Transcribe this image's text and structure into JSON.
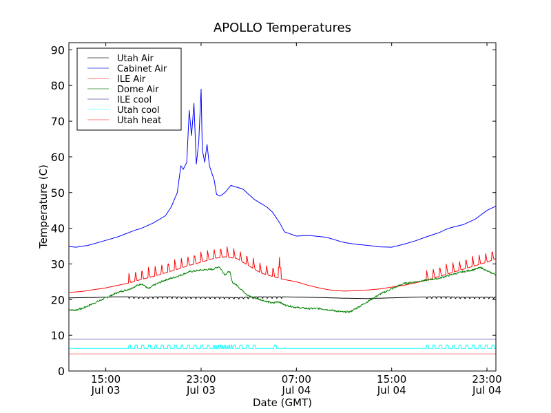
{
  "chart_data": {
    "type": "line",
    "title": "APOLLO Temperatures",
    "xlabel": "Date (GMT)",
    "ylabel": "Temperature (C)",
    "x_units": "hours since 00:00 Jul 03 (GMT)",
    "xlim": [
      11.9,
      47.75
    ],
    "ylim": [
      0,
      92
    ],
    "grid": false,
    "legend_position": "top-left",
    "y_ticks": [
      0,
      10,
      20,
      30,
      40,
      50,
      60,
      70,
      80,
      90
    ],
    "x_ticks": [
      {
        "x": 15,
        "line1": "15:00",
        "line2": "Jul 03"
      },
      {
        "x": 23,
        "line1": "23:00",
        "line2": "Jul 03"
      },
      {
        "x": 31,
        "line1": "07:00",
        "line2": "Jul 04"
      },
      {
        "x": 39,
        "line1": "15:00",
        "line2": "Jul 04"
      },
      {
        "x": 47,
        "line1": "23:00",
        "line2": "Jul 04"
      }
    ],
    "series": [
      {
        "name": "Utah Air",
        "color": "#000000",
        "x": [
          11.9,
          14,
          16,
          17,
          18,
          20,
          22,
          24,
          26,
          28,
          29.5,
          31,
          33,
          35,
          37,
          39,
          41,
          43,
          45,
          47.75
        ],
        "y": [
          20.5,
          20.6,
          20.8,
          20.8,
          20.7,
          20.8,
          20.7,
          20.7,
          20.6,
          20.8,
          20.8,
          20.7,
          20.6,
          20.4,
          20.3,
          20.5,
          20.7,
          20.8,
          20.7,
          20.7
        ],
        "oscillation": {
          "from": 16.9,
          "to": 29.8,
          "amplitude": 0.4,
          "period": 0.4
        }
      },
      {
        "name": "Cabinet Air",
        "color": "#0000ff",
        "x": [
          11.9,
          12.5,
          13.5,
          15,
          16,
          17.5,
          18,
          19,
          20,
          20.5,
          21,
          21.3,
          21.5,
          21.8,
          22,
          22.2,
          22.4,
          22.6,
          22.8,
          23.0,
          23.1,
          23.3,
          23.5,
          23.7,
          23.9,
          24.1,
          24.3,
          24.6,
          25.0,
          25.5,
          26.5,
          27.5,
          28.0,
          28.5,
          29.0,
          29.3,
          29.6,
          30.0,
          31.0,
          32.0,
          33.5,
          35.0,
          36.0,
          37.0,
          38.0,
          39.0,
          40.0,
          41.0,
          42.0,
          43.0,
          43.5,
          44.0,
          45.0,
          46.0,
          47.0,
          47.75
        ],
        "y": [
          34.9,
          34.7,
          35.2,
          36.6,
          37.6,
          39.5,
          40.0,
          41.5,
          43.5,
          46.0,
          50.0,
          57.5,
          56.5,
          58.5,
          73.0,
          66.0,
          75.0,
          58.0,
          64.0,
          79.0,
          62.0,
          58.5,
          63.5,
          57.5,
          55.5,
          53.5,
          49.5,
          49.0,
          50.0,
          52.0,
          51.0,
          48.0,
          47.0,
          46.0,
          44.5,
          43.0,
          41.5,
          39.0,
          37.8,
          38.0,
          37.5,
          36.0,
          35.5,
          35.2,
          34.8,
          34.7,
          35.5,
          36.5,
          37.7,
          38.8,
          39.6,
          40.2,
          41.0,
          42.5,
          45.0,
          46.2
        ]
      },
      {
        "name": "ILE Air",
        "color": "#ff0000",
        "x": [
          11.9,
          13,
          14,
          15,
          16,
          17,
          17.8,
          19,
          20,
          21,
          22,
          23,
          24,
          25,
          26,
          27,
          28,
          29,
          29.8,
          30.2,
          31,
          32,
          33,
          34,
          35,
          36,
          37,
          38,
          39,
          40,
          41,
          42,
          43,
          44,
          45,
          46,
          47,
          47.75
        ],
        "y": [
          22.0,
          22.3,
          22.8,
          23.3,
          24.0,
          24.7,
          25.5,
          26.5,
          27.5,
          28.5,
          29.6,
          30.5,
          31.5,
          32.0,
          31.5,
          29.5,
          27.5,
          26.5,
          25.8,
          25.5,
          25.0,
          24.0,
          23.2,
          22.6,
          22.4,
          22.5,
          22.7,
          23.0,
          23.5,
          24.0,
          24.7,
          25.5,
          26.5,
          27.5,
          28.5,
          29.5,
          30.5,
          31.5
        ],
        "spikes": {
          "from": 16.9,
          "to": 29.6,
          "amplitude": 3.5,
          "period": 0.55,
          "spike_x2": [
            16.9,
            26.5,
            29.6
          ],
          "second_from": 41.9,
          "second_to": 47.75,
          "second_amplitude": 3.5,
          "second_period": 0.55
        }
      },
      {
        "name": "Dome Air",
        "color": "#008000",
        "x": [
          11.9,
          12.3,
          13,
          14,
          15,
          16,
          17,
          18,
          18.6,
          19,
          20,
          21,
          22,
          23,
          24,
          24.5,
          25,
          25.4,
          25.6,
          26,
          26.5,
          27,
          28,
          29,
          29.5,
          30,
          31,
          32,
          33,
          34,
          35,
          35.5,
          36,
          37,
          38,
          39,
          40,
          41,
          42,
          43,
          44,
          45,
          46,
          46.5,
          47,
          47.75
        ],
        "y": [
          17.3,
          17.0,
          17.5,
          19.0,
          20.5,
          22.0,
          23.0,
          24.5,
          23.0,
          24.0,
          25.5,
          26.5,
          27.8,
          28.3,
          28.5,
          29.3,
          27.0,
          28.0,
          25.0,
          24.0,
          22.5,
          21.0,
          20.0,
          19.0,
          19.5,
          18.5,
          17.8,
          17.5,
          17.5,
          17.0,
          16.5,
          16.6,
          17.5,
          19.5,
          21.5,
          23.0,
          24.5,
          25.0,
          25.5,
          26.0,
          27.0,
          27.8,
          28.5,
          29.0,
          28.0,
          27.0
        ]
      },
      {
        "name": "ILE cool",
        "color": "#00007f",
        "x": [
          11.9,
          47.75
        ],
        "y": [
          8.9,
          8.9
        ]
      },
      {
        "name": "Utah cool",
        "color": "#00ffff",
        "x": [
          11.9,
          47.75
        ],
        "y": [
          6.3,
          6.3
        ],
        "pulses": {
          "base": 6.3,
          "high": 7.3,
          "from": 16.9,
          "to": 27.6,
          "period": 0.55,
          "extra_x": [
            29.2
          ],
          "second_from": 41.9,
          "second_to": 47.75
        }
      },
      {
        "name": "Utah heat",
        "color": "#ff0000",
        "x": [
          11.9,
          47.75
        ],
        "y": [
          4.8,
          4.8
        ]
      }
    ]
  }
}
